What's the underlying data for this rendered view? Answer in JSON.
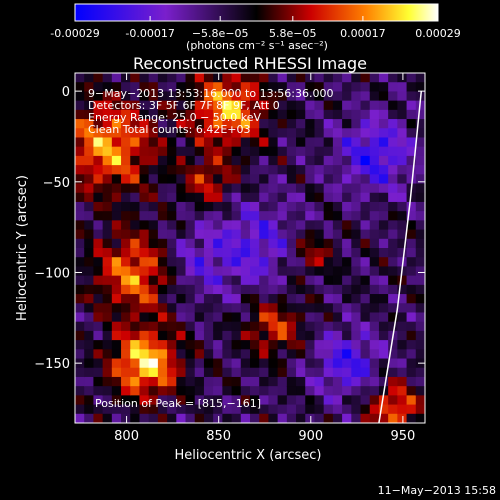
{
  "colorbar": {
    "tick_labels": [
      "-0.00029",
      "-0.00017",
      "−5.8e−05",
      "5.8e−05",
      "0.00017",
      "0.00029"
    ],
    "tick_values": [
      -0.00029,
      -0.00017,
      -5.8e-05,
      5.8e-05,
      0.00017,
      0.00029
    ],
    "range": [
      -0.00029,
      0.00029
    ],
    "unit_label": "(photons cm⁻² s⁻¹ asec⁻²)"
  },
  "chart_data": {
    "type": "heatmap",
    "title": "Reconstructed RHESSI Image",
    "xlabel": "Heliocentric X (arcsec)",
    "ylabel": "Heliocentric Y (arcsec)",
    "xlim": [
      772,
      962
    ],
    "ylim": [
      -183,
      10
    ],
    "x_ticks": [
      800,
      850,
      900,
      950
    ],
    "y_ticks": [
      0,
      -50,
      -100,
      -150
    ],
    "annotations": [
      "9−May−2013 13:53:16.000 to 13:56:36.000",
      "Detectors: 3F 5F 6F 7F 8F 9F, Att 0",
      "Energy Range: 25.0 − 50.0 keV",
      "Clean     Total counts: 6.42E+03"
    ],
    "peak_label": "Position of Peak = [815,−161]",
    "peak": [
      815,
      -161
    ],
    "limb_line": [
      [
        937,
        -183
      ],
      [
        947,
        -120
      ],
      [
        954,
        -60
      ],
      [
        960,
        0
      ]
    ],
    "hot_regions": [
      {
        "x": 810,
        "y": -150,
        "r": 18,
        "v": 1.0
      },
      {
        "x": 805,
        "y": -100,
        "r": 22,
        "v": 0.75
      },
      {
        "x": 790,
        "y": -30,
        "r": 25,
        "v": 0.8
      },
      {
        "x": 855,
        "y": -10,
        "r": 20,
        "v": 0.85
      },
      {
        "x": 845,
        "y": -50,
        "r": 14,
        "v": 0.5
      },
      {
        "x": 880,
        "y": -130,
        "r": 16,
        "v": 0.55
      },
      {
        "x": 945,
        "y": -175,
        "r": 14,
        "v": 0.7
      },
      {
        "x": 900,
        "y": -90,
        "r": 12,
        "v": 0.45
      }
    ],
    "cold_regions": [
      {
        "x": 935,
        "y": -35,
        "r": 20,
        "v": -0.6
      },
      {
        "x": 920,
        "y": -150,
        "r": 18,
        "v": -0.55
      },
      {
        "x": 870,
        "y": -85,
        "r": 25,
        "v": -0.45
      },
      {
        "x": 835,
        "y": -95,
        "r": 20,
        "v": -0.35
      }
    ]
  },
  "footer": {
    "timestamp": "11−May−2013 15:58"
  }
}
